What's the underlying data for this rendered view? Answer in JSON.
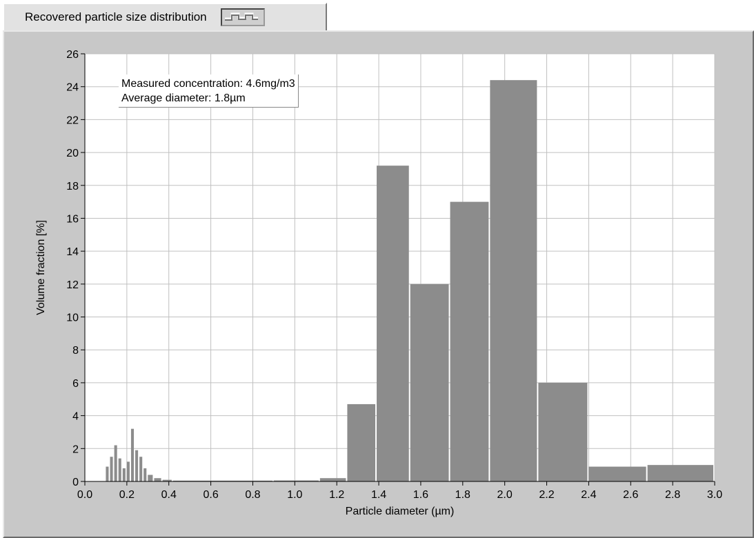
{
  "legend": {
    "label": "Recovered particle size distribution"
  },
  "annotation": {
    "line1": "Measured concentration: 4.6mg/m3",
    "line2": "Average diameter: 1.8µm"
  },
  "colors": {
    "bar": "#8c8c8c",
    "plot_bg": "#ffffff",
    "grid": "#c0c0c0",
    "panel": "#c8c8c8"
  },
  "chart_data": {
    "type": "bar",
    "title": "Recovered particle size distribution",
    "xlabel": "Particle diameter (µm)",
    "ylabel": "Volume fraction [%]",
    "xlim": [
      0.0,
      3.0
    ],
    "ylim": [
      0,
      26
    ],
    "grid": true,
    "x_ticks": [
      "0.0",
      "0.2",
      "0.4",
      "0.6",
      "0.8",
      "1.0",
      "1.2",
      "1.4",
      "1.6",
      "1.8",
      "2.0",
      "2.2",
      "2.4",
      "2.6",
      "2.8",
      "3.0"
    ],
    "y_ticks": [
      "0",
      "2",
      "4",
      "6",
      "8",
      "10",
      "12",
      "14",
      "16",
      "18",
      "20",
      "22",
      "24",
      "26"
    ],
    "bins": [
      {
        "x0": 0.1,
        "x1": 0.12,
        "value": 0.9
      },
      {
        "x0": 0.12,
        "x1": 0.14,
        "value": 1.5
      },
      {
        "x0": 0.14,
        "x1": 0.16,
        "value": 2.2
      },
      {
        "x0": 0.16,
        "x1": 0.18,
        "value": 1.4
      },
      {
        "x0": 0.18,
        "x1": 0.2,
        "value": 0.8
      },
      {
        "x0": 0.2,
        "x1": 0.22,
        "value": 1.2
      },
      {
        "x0": 0.22,
        "x1": 0.24,
        "value": 3.2
      },
      {
        "x0": 0.24,
        "x1": 0.26,
        "value": 1.9
      },
      {
        "x0": 0.26,
        "x1": 0.28,
        "value": 1.5
      },
      {
        "x0": 0.28,
        "x1": 0.3,
        "value": 0.8
      },
      {
        "x0": 0.3,
        "x1": 0.33,
        "value": 0.4
      },
      {
        "x0": 0.33,
        "x1": 0.37,
        "value": 0.2
      },
      {
        "x0": 0.37,
        "x1": 0.42,
        "value": 0.1
      },
      {
        "x0": 0.42,
        "x1": 0.9,
        "value": 0.05
      },
      {
        "x0": 0.9,
        "x1": 1.12,
        "value": 0.06
      },
      {
        "x0": 1.12,
        "x1": 1.25,
        "value": 0.2
      },
      {
        "x0": 1.25,
        "x1": 1.39,
        "value": 4.7
      },
      {
        "x0": 1.39,
        "x1": 1.55,
        "value": 19.2
      },
      {
        "x0": 1.55,
        "x1": 1.74,
        "value": 12.0
      },
      {
        "x0": 1.74,
        "x1": 1.93,
        "value": 17.0
      },
      {
        "x0": 1.93,
        "x1": 2.16,
        "value": 24.4
      },
      {
        "x0": 2.16,
        "x1": 2.4,
        "value": 6.0
      },
      {
        "x0": 2.4,
        "x1": 2.68,
        "value": 0.9
      },
      {
        "x0": 2.68,
        "x1": 3.0,
        "value": 1.0
      }
    ]
  }
}
